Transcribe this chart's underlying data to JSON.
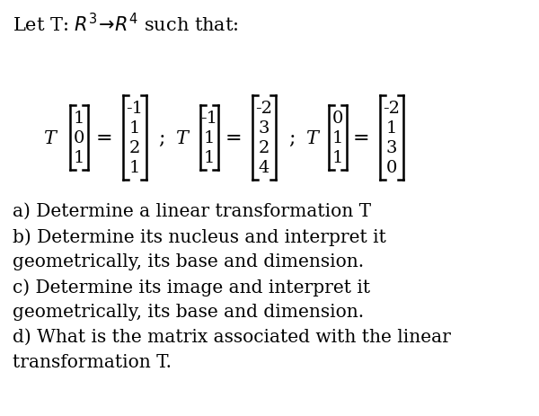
{
  "background_color": "#ffffff",
  "text_color": "#000000",
  "figsize": [
    6.0,
    4.64
  ],
  "dpi": 100,
  "title": "Let T: $R^3\\!\\rightarrow\\!R^4$ such that:",
  "formula_line": "T$\\begin{bmatrix}1\\\\0\\\\1\\end{bmatrix}=\\begin{bmatrix}-1\\\\1\\\\2\\\\1\\end{bmatrix}$;T$\\begin{bmatrix}-1\\\\1\\\\1\\end{bmatrix}=\\begin{bmatrix}-2\\\\3\\\\2\\\\4\\end{bmatrix}$;T$\\begin{bmatrix}0\\\\1\\\\1\\end{bmatrix}=\\begin{bmatrix}-2\\\\1\\\\3\\\\0\\end{bmatrix}$",
  "title_fontsize": 15,
  "body_fontsize": 14.5,
  "mat_fontsize": 14,
  "text_lines": [
    "a) Determine a linear transformation T",
    "b) Determine its nucleus and interpret it",
    "geometrically, its base and dimension.",
    "c) Determine its image and interpret it",
    "geometrically, its base and dimension.",
    "d) What is the matrix associated with the linear",
    "transformation T."
  ],
  "vec1_input": [
    "1",
    "0",
    "1"
  ],
  "vec1_output": [
    "-1",
    "1",
    "2",
    "1"
  ],
  "vec2_input": [
    "-1",
    "1",
    "1"
  ],
  "vec2_output": [
    "-2",
    "3",
    "2",
    "4"
  ],
  "vec3_input": [
    "0",
    "1",
    "1"
  ],
  "vec3_output": [
    "-2",
    "1",
    "3",
    "0"
  ]
}
